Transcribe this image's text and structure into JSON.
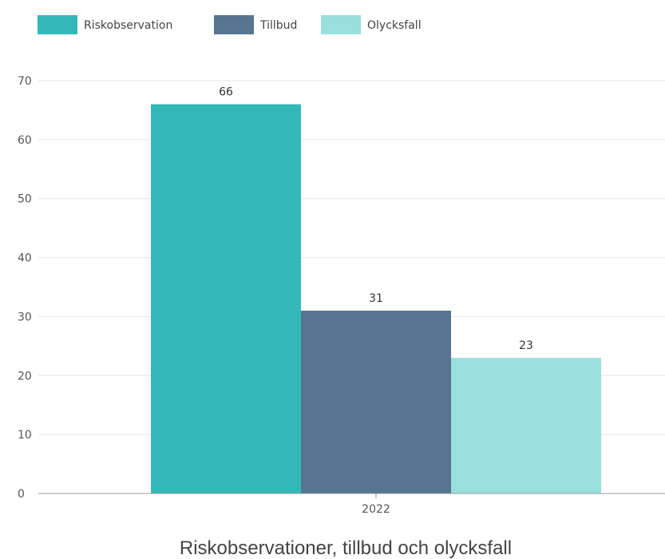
{
  "chart_data": {
    "type": "bar",
    "title": "Riskobservationer, tillbud och olycksfall",
    "categories": [
      "2022"
    ],
    "series": [
      {
        "name": "Riskobservation",
        "values": [
          66
        ],
        "color": "#33b8b8"
      },
      {
        "name": "Tillbud",
        "values": [
          31
        ],
        "color": "#557590"
      },
      {
        "name": "Olycksfall",
        "values": [
          23
        ],
        "color": "#99e0dc"
      }
    ],
    "ylim": [
      0,
      70
    ],
    "yticks": [
      0,
      10,
      20,
      30,
      40,
      50,
      60,
      70
    ],
    "data_labels": true,
    "grid": true,
    "legend_position": "top-left"
  }
}
